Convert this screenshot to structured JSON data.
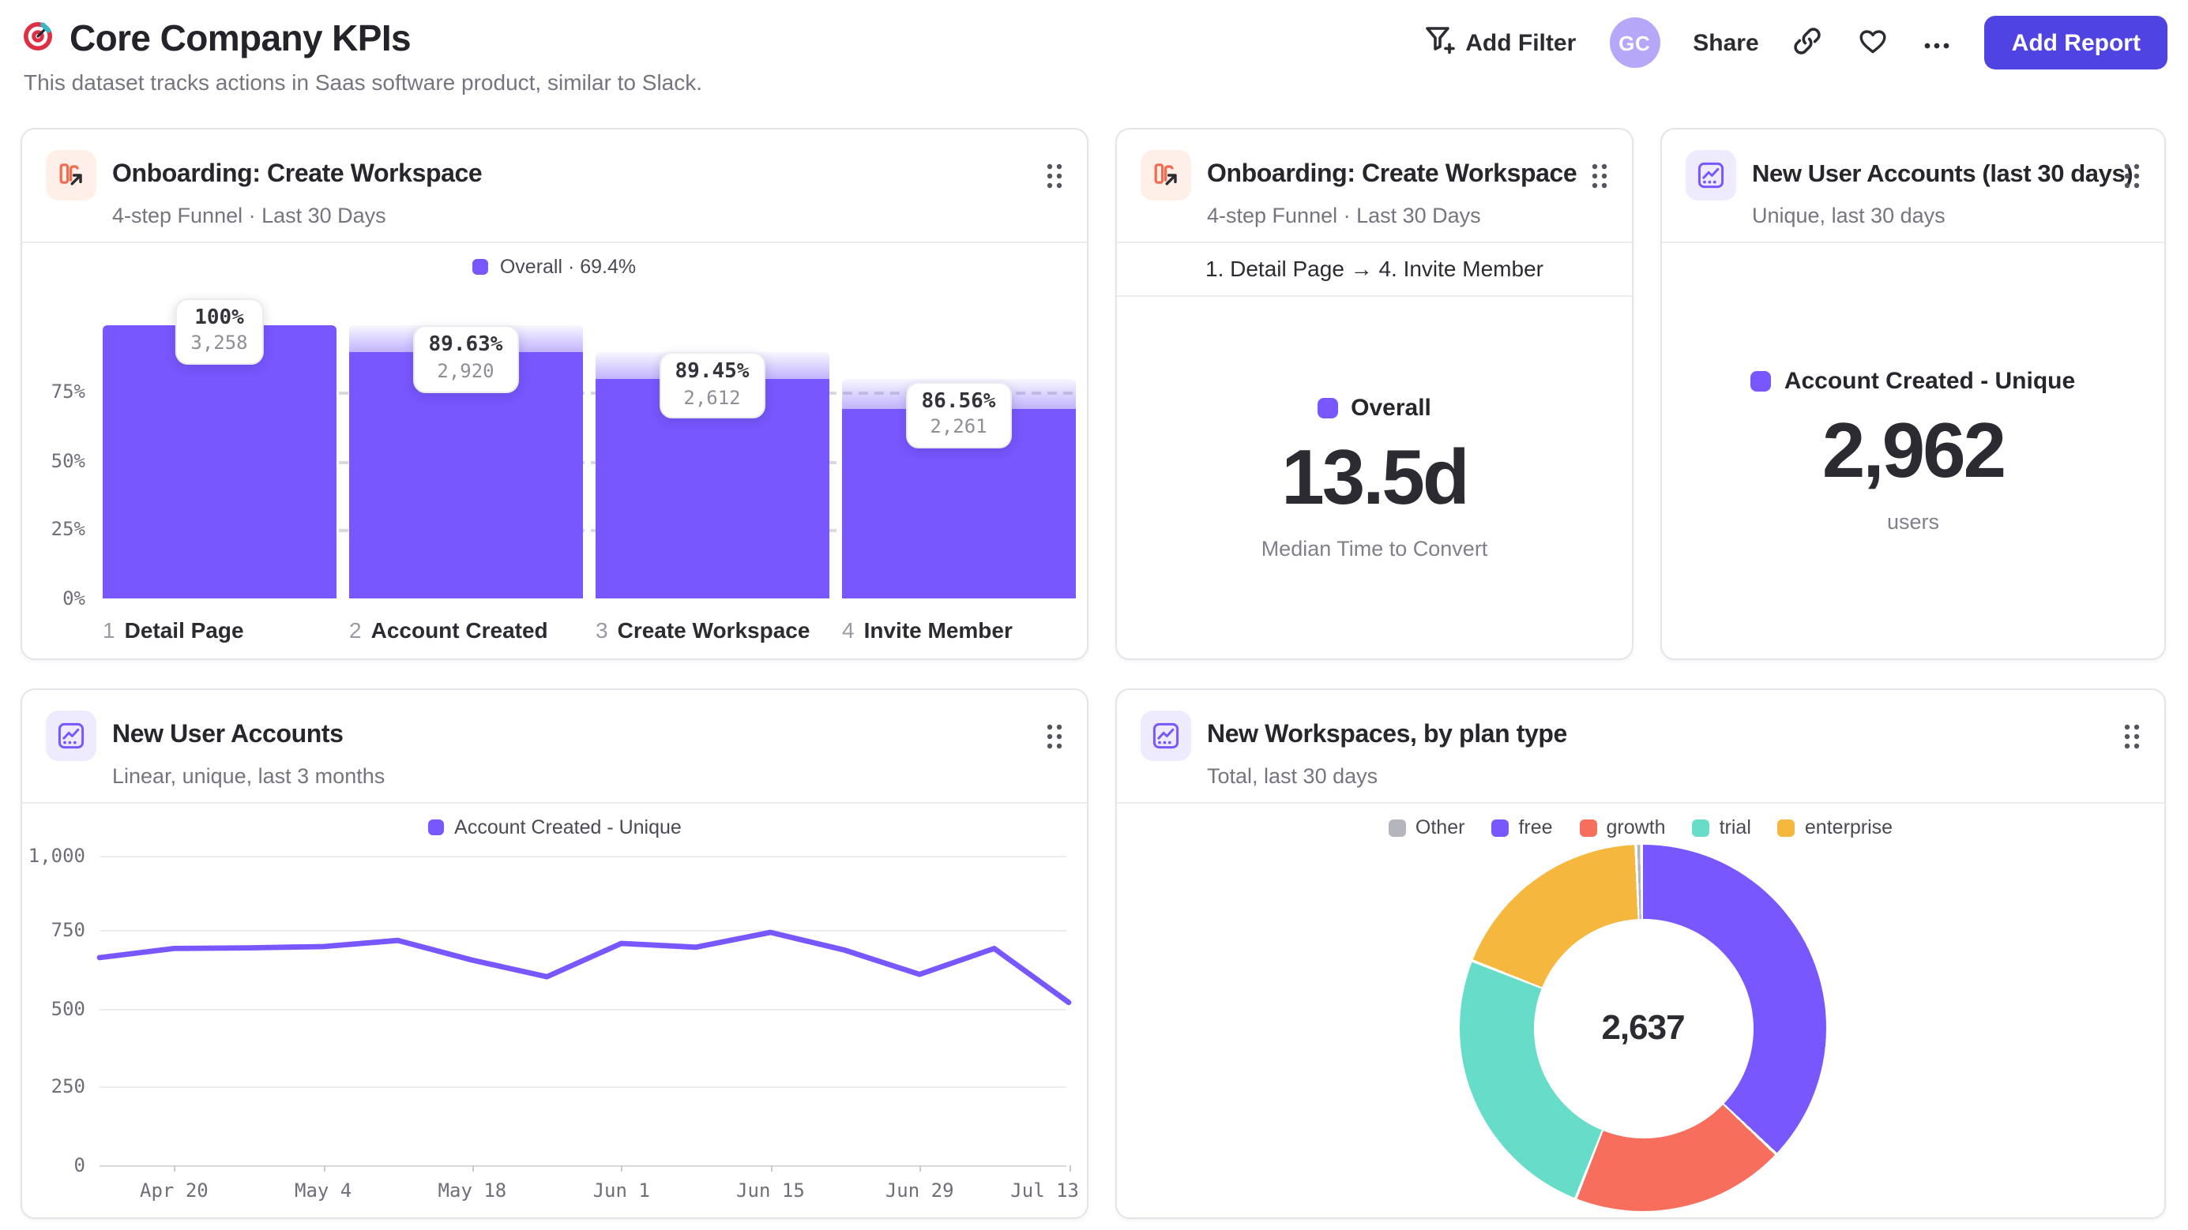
{
  "header": {
    "title": "Core Company KPIs",
    "subtitle": "This dataset tracks actions in Saas software product, similar to Slack."
  },
  "toolbar": {
    "add_filter_label": "Add Filter",
    "avatar_initials": "GC",
    "share_label": "Share",
    "add_report_label": "Add Report"
  },
  "colors": {
    "purple": "#7857FF",
    "coral": "#F76E5C",
    "teal": "#66DCC9",
    "amber": "#F5B73D",
    "gray": "#B5B5BD",
    "accent_button": "#4F43E1"
  },
  "cards": {
    "funnel": {
      "title": "Onboarding: Create Workspace",
      "subtitle": "4-step Funnel · Last 30 Days",
      "legend_label": "Overall · 69.4%"
    },
    "time_to_convert": {
      "title": "Onboarding: Create Workspace",
      "subtitle": "4-step Funnel · Last 30 Days",
      "range_label": "1. Detail Page → 4. Invite Member",
      "legend_label": "Overall",
      "value": "13.5d",
      "caption": "Median Time to Convert"
    },
    "new_users_30d": {
      "title": "New User Accounts (last 30 days)",
      "subtitle": "Unique, last 30 days",
      "legend_label": "Account Created - Unique",
      "value": "2,962",
      "caption": "users"
    },
    "new_users_trend": {
      "title": "New User Accounts",
      "subtitle": "Linear, unique, last 3 months",
      "legend_label": "Account Created - Unique"
    },
    "workspaces_by_plan": {
      "title": "New Workspaces, by plan type",
      "subtitle": "Total, last 30 days",
      "center_label": "2,637"
    }
  },
  "chart_data": [
    {
      "type": "bar",
      "variant": "funnel",
      "title": "Onboarding: Create Workspace",
      "overall_conversion": "69.4%",
      "y_ticks": [
        "75%",
        "50%",
        "25%",
        "0%"
      ],
      "steps": [
        {
          "index": "1",
          "label": "Detail Page",
          "conversion": "100%",
          "count": 3258,
          "count_label": "3,258"
        },
        {
          "index": "2",
          "label": "Account Created",
          "conversion": "89.63%",
          "count": 2920,
          "count_label": "2,920"
        },
        {
          "index": "3",
          "label": "Create Workspace",
          "conversion": "89.45%",
          "count": 2612,
          "count_label": "2,612"
        },
        {
          "index": "4",
          "label": "Invite Member",
          "conversion": "86.56%",
          "count": 2261,
          "count_label": "2,261"
        }
      ]
    },
    {
      "type": "line",
      "title": "New User Accounts",
      "series": [
        {
          "name": "Account Created - Unique",
          "values": [
            670,
            700,
            702,
            706,
            726,
            662,
            608,
            716,
            704,
            752,
            694,
            616,
            700,
            525
          ]
        }
      ],
      "x": [
        "Apr 13",
        "Apr 20",
        "Apr 27",
        "May 4",
        "May 11",
        "May 18",
        "May 25",
        "Jun 1",
        "Jun 8",
        "Jun 15",
        "Jun 22",
        "Jun 29",
        "Jul 6",
        "Jul 13"
      ],
      "x_tick_labels": [
        "Apr 20",
        "May 4",
        "May 18",
        "Jun 1",
        "Jun 15",
        "Jun 29",
        "Jul 13"
      ],
      "y_tick_labels": [
        "1,000",
        "750",
        "500",
        "250",
        "0"
      ],
      "ylim": [
        0,
        1000
      ],
      "grid": true,
      "legend_position": "top"
    },
    {
      "type": "pie",
      "variant": "donut",
      "title": "New Workspaces, by plan type",
      "total": 2637,
      "total_label": "2,637",
      "slices": [
        {
          "label": "free",
          "pct": 37.2,
          "color": "#7857FF"
        },
        {
          "label": "growth",
          "pct": 18.9,
          "color": "#F76E5C"
        },
        {
          "label": "trial",
          "pct": 25.0,
          "color": "#66DCC9"
        },
        {
          "label": "enterprise",
          "pct": 18.4,
          "color": "#F5B73D"
        },
        {
          "label": "Other",
          "pct": 0.5,
          "color": "#B5B5BD"
        }
      ],
      "legend": [
        {
          "label": "Other",
          "color": "#B5B5BD"
        },
        {
          "label": "free",
          "color": "#7857FF"
        },
        {
          "label": "growth",
          "color": "#F76E5C"
        },
        {
          "label": "trial",
          "color": "#66DCC9"
        },
        {
          "label": "enterprise",
          "color": "#F5B73D"
        }
      ]
    }
  ]
}
